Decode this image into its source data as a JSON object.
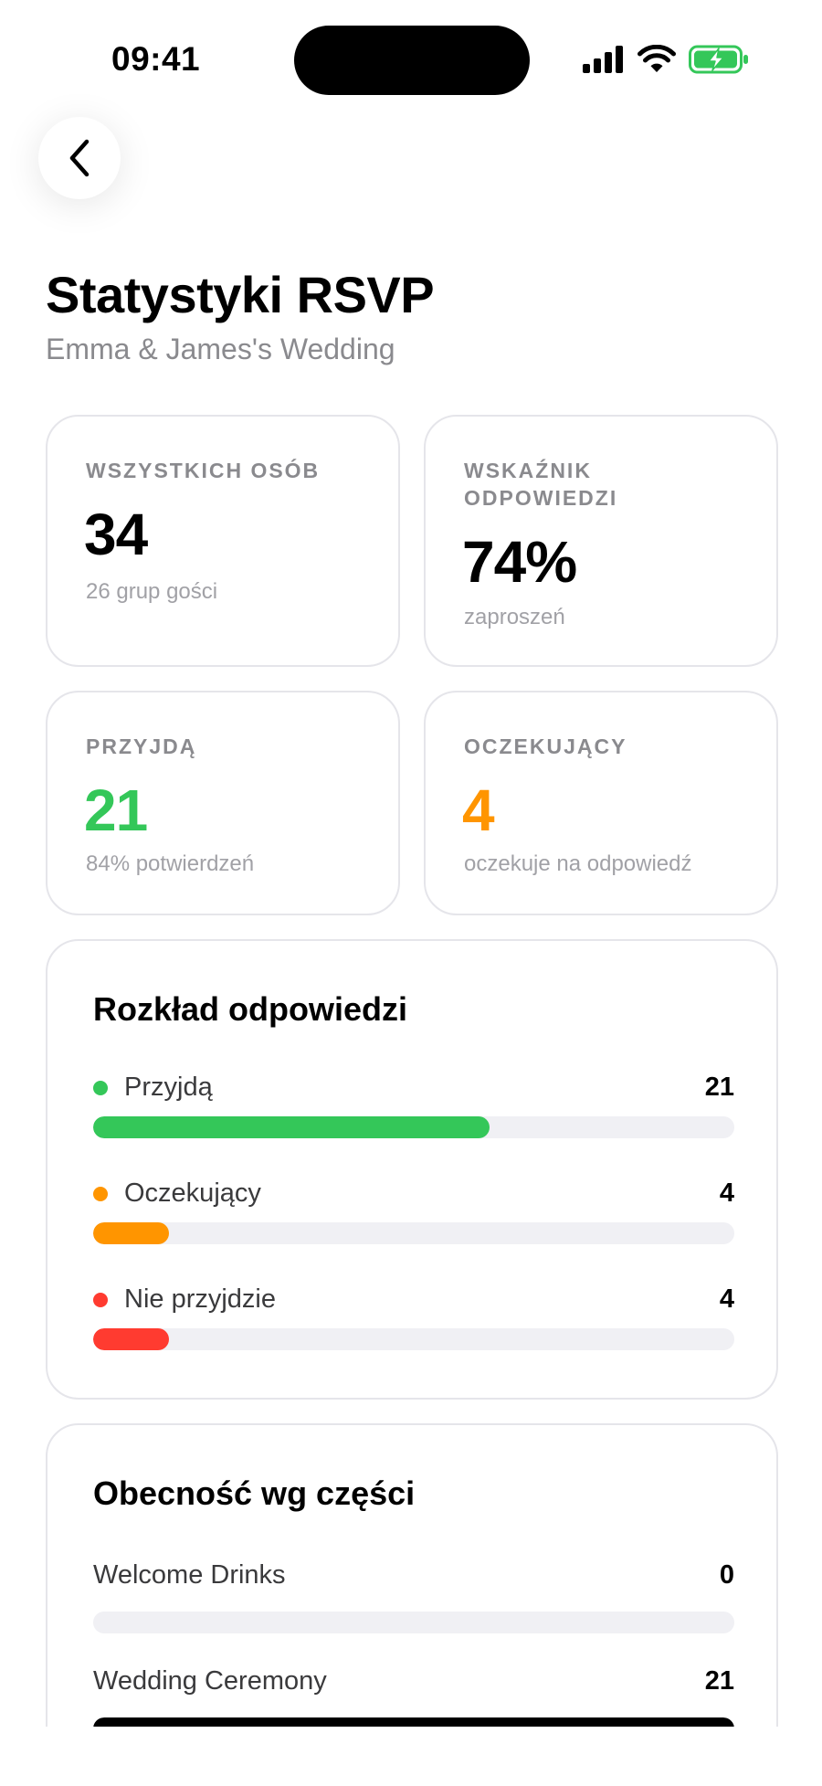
{
  "status_bar": {
    "time": "09:41"
  },
  "header": {
    "title": "Statystyki RSVP",
    "subtitle": "Emma & James's Wedding"
  },
  "stats": {
    "total": {
      "label": "WSZYSTKICH OSÓB",
      "value": "34",
      "sub": "26 grup gości"
    },
    "rate": {
      "label_line1": "WSKAŹNIK",
      "label_line2": "ODPOWIEDZI",
      "value": "74%",
      "sub": "zaproszeń"
    },
    "attending": {
      "label": "PRZYJDĄ",
      "value": "21",
      "sub": "84% potwierdzeń",
      "color": "#34c759"
    },
    "pending": {
      "label": "OCZEKUJĄCY",
      "value": "4",
      "sub": "oczekuje na odpowiedź",
      "color": "#ff9500"
    }
  },
  "breakdown": {
    "title": "Rozkład odpowiedzi",
    "rows": [
      {
        "label": "Przyjdą",
        "count": "21",
        "fraction": 0.618,
        "color": "#34c759"
      },
      {
        "label": "Oczekujący",
        "count": "4",
        "fraction": 0.118,
        "color": "#ff9500"
      },
      {
        "label": "Nie przyjdzie",
        "count": "4",
        "fraction": 0.118,
        "color": "#ff3b30"
      }
    ]
  },
  "attendance": {
    "title": "Obecność wg części",
    "rows": [
      {
        "label": "Welcome Drinks",
        "count": "0",
        "fraction": 0,
        "color": "#000000"
      },
      {
        "label": "Wedding Ceremony",
        "count": "21",
        "fraction": 1,
        "color": "#000000"
      }
    ]
  }
}
